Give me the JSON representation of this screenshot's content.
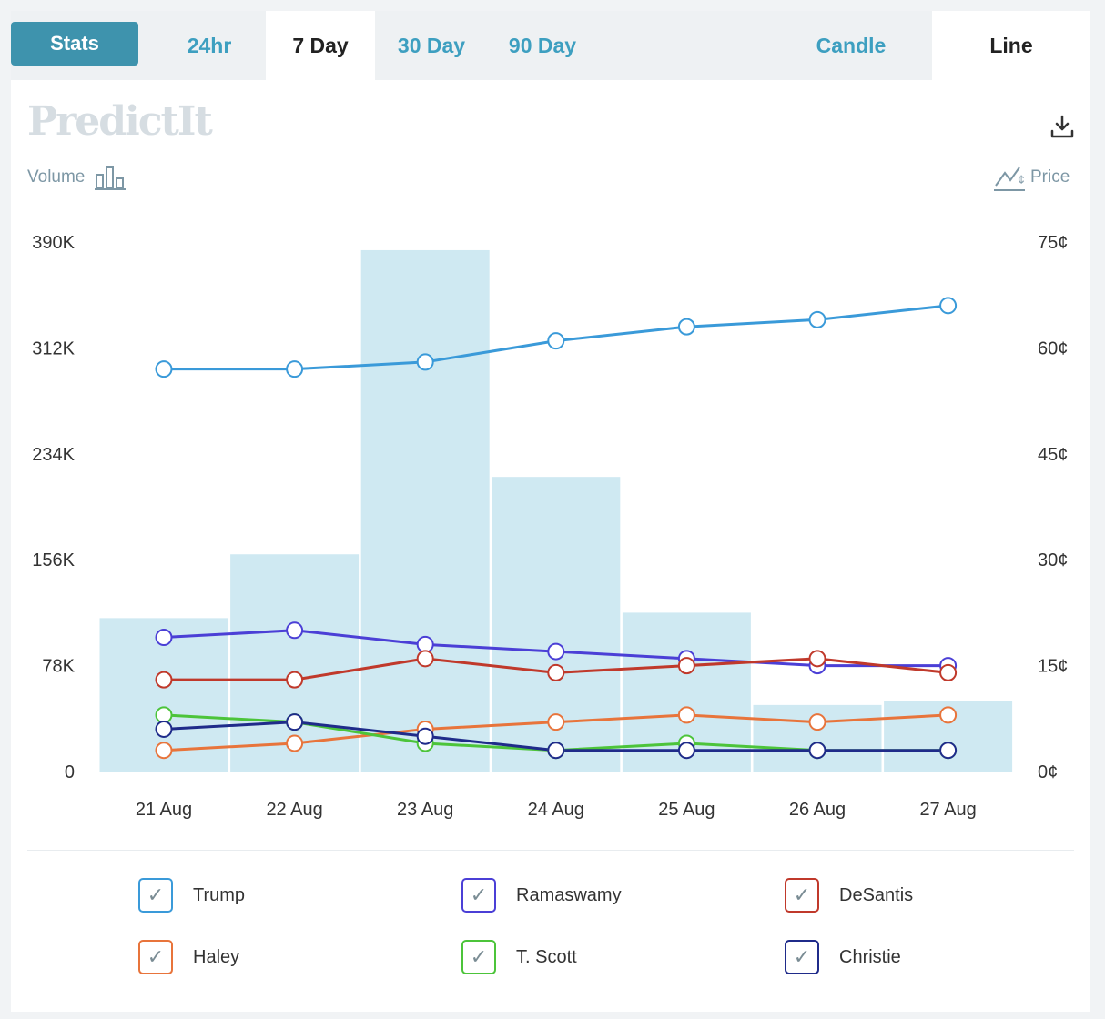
{
  "tabs": {
    "stats": "Stats",
    "h24": "24hr",
    "d7": "7 Day",
    "d30": "30 Day",
    "d90": "90 Day",
    "candle": "Candle",
    "line": "Line"
  },
  "logo_text": "PredictIt",
  "labels": {
    "volume": "Volume",
    "price": "Price"
  },
  "colors": {
    "tab_accent": "#3d9fc0",
    "stats_button": "#3e93ad",
    "volume_bar": "#cfe9f2"
  },
  "chart_data": {
    "type": "line",
    "categories": [
      "21 Aug",
      "22 Aug",
      "23 Aug",
      "24 Aug",
      "25 Aug",
      "26 Aug",
      "27 Aug"
    ],
    "volume_axis": {
      "ticks": [
        "390K",
        "312K",
        "234K",
        "156K",
        "78K",
        "0"
      ],
      "range": [
        0,
        390000
      ]
    },
    "price_axis": {
      "ticks": [
        "75¢",
        "60¢",
        "45¢",
        "30¢",
        "15¢",
        "0¢"
      ],
      "range": [
        0,
        75
      ]
    },
    "volume": [
      113000,
      160000,
      384000,
      217000,
      117000,
      49000,
      52000
    ],
    "series": [
      {
        "name": "Trump",
        "color": "#3a9ad9",
        "values": [
          57,
          57,
          58,
          61,
          63,
          64,
          66
        ]
      },
      {
        "name": "Ramaswamy",
        "color": "#4b3fd6",
        "values": [
          19,
          20,
          18,
          17,
          16,
          15,
          15
        ]
      },
      {
        "name": "DeSantis",
        "color": "#c0392b",
        "values": [
          13,
          13,
          16,
          14,
          15,
          16,
          14
        ]
      },
      {
        "name": "Haley",
        "color": "#e8743b",
        "values": [
          3,
          4,
          6,
          7,
          8,
          7,
          8
        ]
      },
      {
        "name": "T. Scott",
        "color": "#4cc43a",
        "values": [
          8,
          7,
          4,
          3,
          4,
          3,
          3
        ]
      },
      {
        "name": "Christie",
        "color": "#1f2b8a",
        "values": [
          6,
          7,
          5,
          3,
          3,
          3,
          3
        ]
      }
    ],
    "grid": false
  },
  "legend": [
    {
      "label": "Trump",
      "color": "#3a9ad9"
    },
    {
      "label": "Ramaswamy",
      "color": "#4b3fd6"
    },
    {
      "label": "DeSantis",
      "color": "#c0392b"
    },
    {
      "label": "Haley",
      "color": "#e8743b"
    },
    {
      "label": "T. Scott",
      "color": "#4cc43a"
    },
    {
      "label": "Christie",
      "color": "#1f2b8a"
    }
  ]
}
